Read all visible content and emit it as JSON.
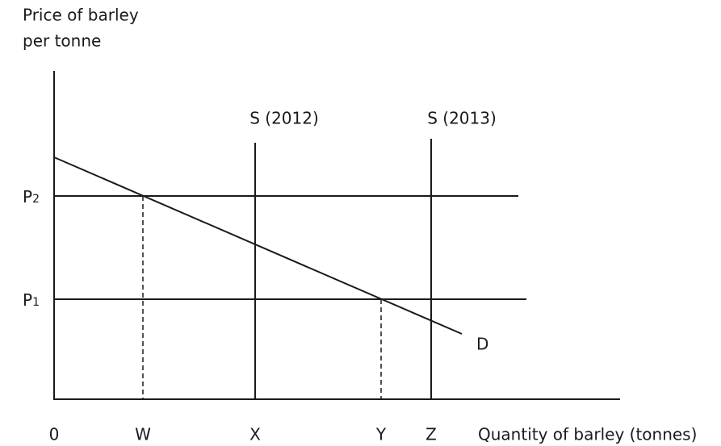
{
  "axis": {
    "y_label_lines": [
      "Price of barley",
      "per tonne"
    ],
    "x_label": "Quantity of barley (tonnes)",
    "origin": "0"
  },
  "supply": [
    "S (2012)",
    "S (2013)"
  ],
  "demand": "D",
  "prices": [
    {
      "letter": "P",
      "subscript": "2"
    },
    {
      "letter": "P",
      "subscript": "1"
    }
  ],
  "quantities": [
    "W",
    "X",
    "Y",
    "Z"
  ]
}
